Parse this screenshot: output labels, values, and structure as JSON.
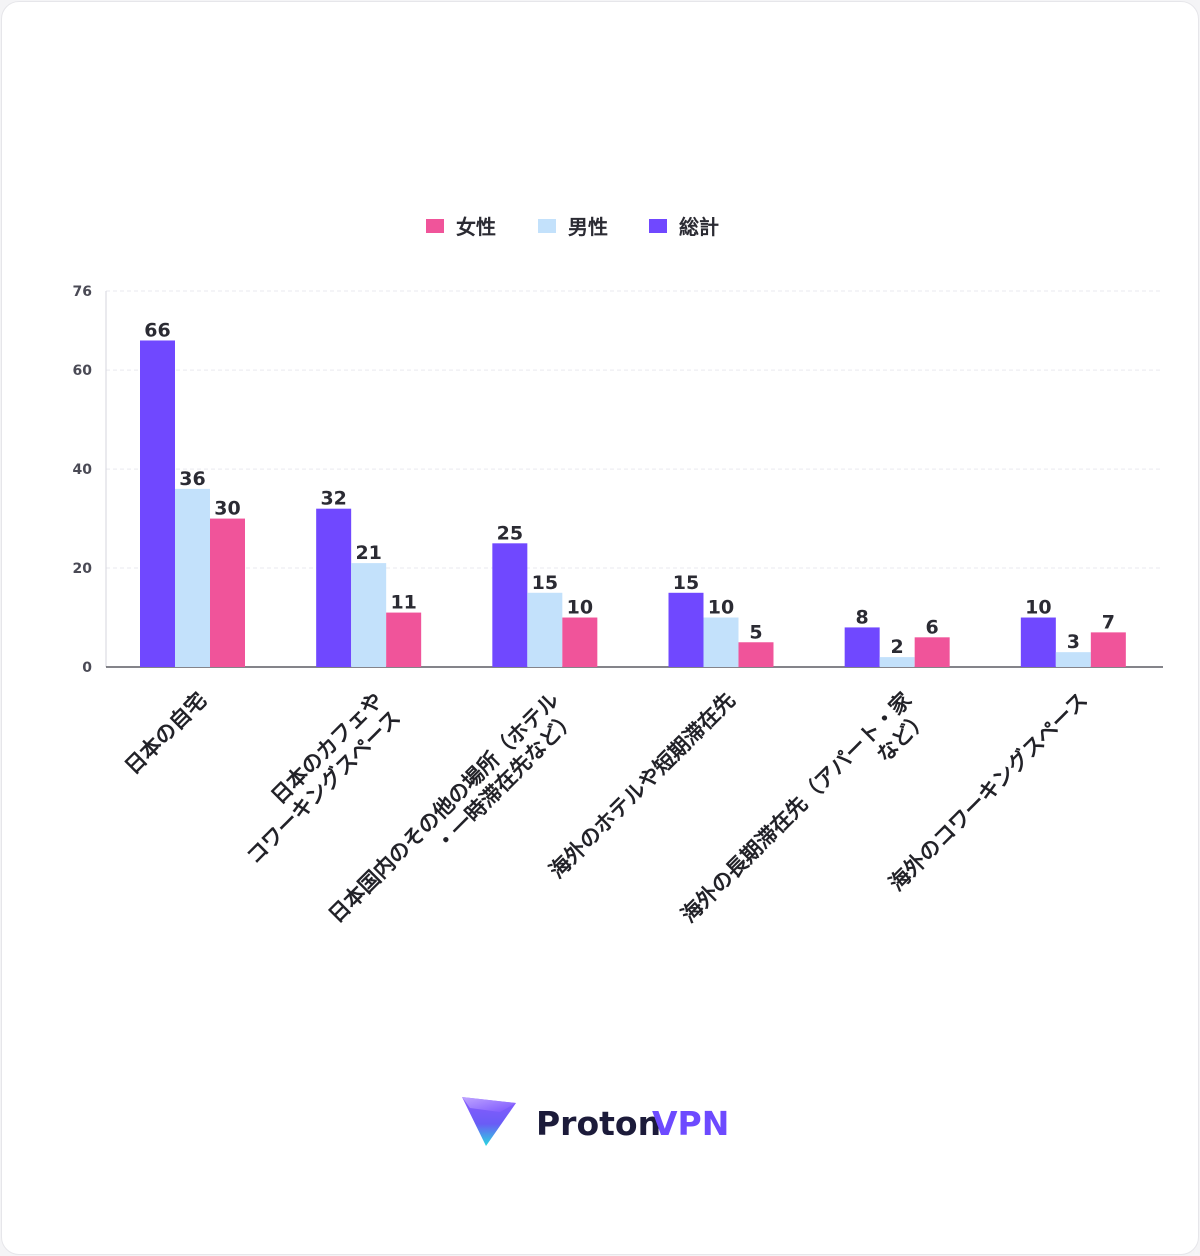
{
  "chart_data": {
    "type": "bar",
    "categories": [
      "日本の自宅",
      "日本のカフェや\nコワーキングスペース",
      "日本国内のその他の場所（ホテル\n・一時滞在先など）",
      "海外のホテルや短期滞在先",
      "海外の長期滞在先（アパート・家\nなど）",
      "海外のコワーキングスペース"
    ],
    "series": [
      {
        "name": "総計",
        "color": "#7048ff",
        "values": [
          66,
          32,
          25,
          15,
          8,
          10
        ]
      },
      {
        "name": "男性",
        "color": "#c3e1fb",
        "values": [
          36,
          21,
          15,
          10,
          2,
          3
        ]
      },
      {
        "name": "女性",
        "color": "#f0549a",
        "values": [
          30,
          11,
          10,
          5,
          6,
          7
        ]
      }
    ],
    "legend": [
      {
        "name": "女性",
        "color": "#f0549a"
      },
      {
        "name": "男性",
        "color": "#c3e1fb"
      },
      {
        "name": "総計",
        "color": "#7048ff"
      }
    ],
    "legend_position": "top-center",
    "yticks": [
      0,
      20,
      40,
      60,
      76
    ],
    "ylim": [
      0,
      76
    ],
    "grid": true,
    "title": "",
    "xlabel": "",
    "ylabel": ""
  },
  "brand": {
    "name": "Proton VPN",
    "word1": "Proton",
    "word2": "VPN",
    "color1": "#1c1b3a",
    "color2": "#6d4aff"
  }
}
